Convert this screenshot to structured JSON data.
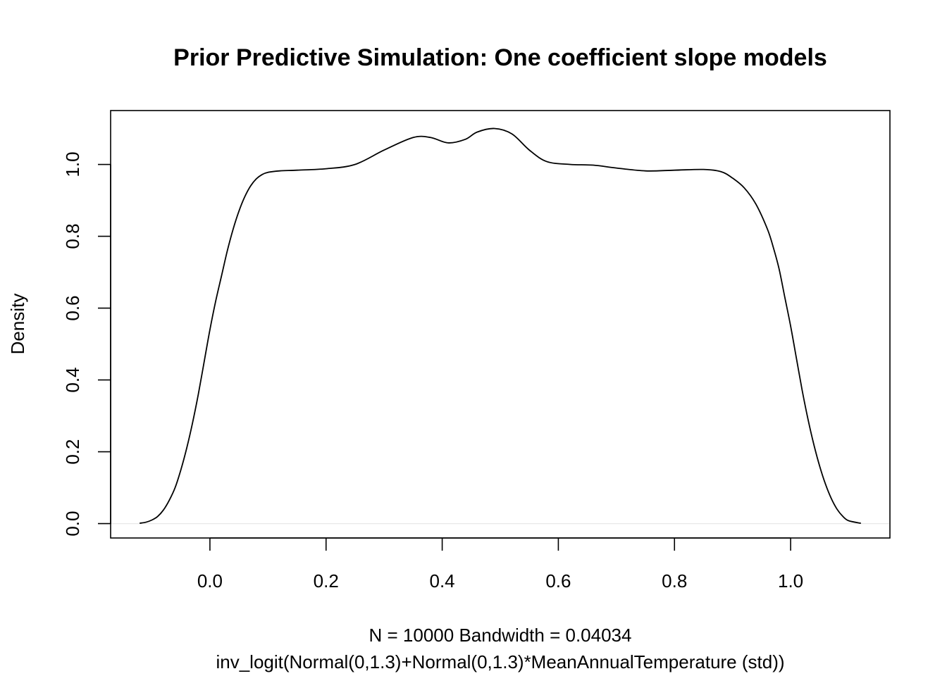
{
  "chart_data": {
    "type": "line",
    "title": "Prior Predictive Simulation: One coefficient slope models",
    "xlabel_line1": "N = 10000   Bandwidth = 0.04034",
    "xlabel_line2": "inv_logit(Normal(0,1.3)+Normal(0,1.3)*MeanAnnualTemperature (std))",
    "ylabel": "Density",
    "xlim": [
      -0.171,
      1.171
    ],
    "ylim": [
      -0.04,
      1.15
    ],
    "xticks": [
      "0.0",
      "0.2",
      "0.4",
      "0.6",
      "0.8",
      "1.0"
    ],
    "yticks": [
      "0.0",
      "0.2",
      "0.4",
      "0.6",
      "0.8",
      "1.0"
    ],
    "zero_line": true,
    "grid": false,
    "series": [
      {
        "color": "#000000",
        "x": [
          -0.121,
          -0.11,
          -0.1,
          -0.09,
          -0.08,
          -0.07,
          -0.06,
          -0.05,
          -0.04,
          -0.03,
          -0.02,
          -0.01,
          0.0,
          0.01,
          0.02,
          0.03,
          0.04,
          0.05,
          0.06,
          0.07,
          0.08,
          0.09,
          0.1,
          0.12,
          0.15,
          0.2,
          0.25,
          0.3,
          0.35,
          0.38,
          0.41,
          0.44,
          0.46,
          0.49,
          0.52,
          0.55,
          0.58,
          0.62,
          0.66,
          0.7,
          0.75,
          0.8,
          0.85,
          0.88,
          0.9,
          0.92,
          0.94,
          0.96,
          0.97,
          0.98,
          0.99,
          1.0,
          1.01,
          1.02,
          1.03,
          1.04,
          1.05,
          1.06,
          1.07,
          1.08,
          1.09,
          1.1,
          1.121
        ],
        "y": [
          0.001,
          0.004,
          0.01,
          0.02,
          0.038,
          0.065,
          0.1,
          0.15,
          0.21,
          0.28,
          0.36,
          0.45,
          0.54,
          0.62,
          0.69,
          0.76,
          0.82,
          0.87,
          0.91,
          0.94,
          0.96,
          0.972,
          0.978,
          0.982,
          0.984,
          0.988,
          1.0,
          1.04,
          1.075,
          1.075,
          1.06,
          1.07,
          1.09,
          1.1,
          1.085,
          1.04,
          1.008,
          1.0,
          0.998,
          0.99,
          0.982,
          0.984,
          0.986,
          0.98,
          0.962,
          0.935,
          0.89,
          0.82,
          0.77,
          0.71,
          0.63,
          0.55,
          0.46,
          0.37,
          0.29,
          0.22,
          0.16,
          0.11,
          0.07,
          0.04,
          0.02,
          0.008,
          0.001
        ]
      }
    ]
  }
}
